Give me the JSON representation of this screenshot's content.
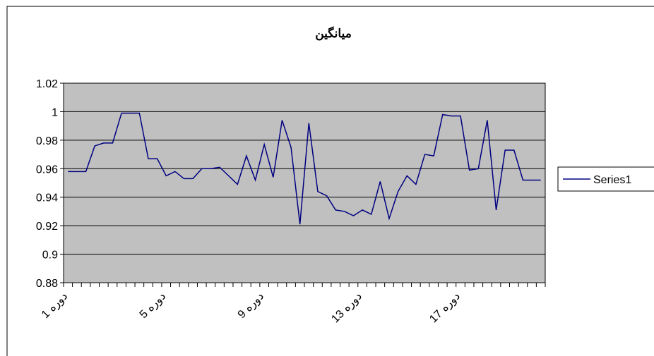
{
  "chart_data": {
    "type": "line",
    "title": "میانگین",
    "categories": [
      "دوره 1",
      null,
      null,
      null,
      null,
      null,
      null,
      null,
      null,
      null,
      null,
      "دوره 5",
      null,
      null,
      null,
      null,
      null,
      null,
      null,
      null,
      null,
      null,
      "دوره 9",
      null,
      null,
      null,
      null,
      null,
      null,
      null,
      null,
      null,
      null,
      "دوره 13",
      null,
      null,
      null,
      null,
      null,
      null,
      null,
      null,
      null,
      null,
      "دوره 17",
      null,
      null,
      null,
      null,
      null,
      null,
      null,
      null,
      null
    ],
    "series": [
      {
        "name": "Series1",
        "color": "#000080",
        "values": [
          0.958,
          0.958,
          0.958,
          0.976,
          0.978,
          0.978,
          0.999,
          0.999,
          0.999,
          0.967,
          0.967,
          0.955,
          0.958,
          0.953,
          0.953,
          0.96,
          0.96,
          0.961,
          0.955,
          0.949,
          0.969,
          0.952,
          0.977,
          0.954,
          0.994,
          0.975,
          0.921,
          0.992,
          0.944,
          0.941,
          0.931,
          0.93,
          0.927,
          0.931,
          0.928,
          0.951,
          0.925,
          0.944,
          0.955,
          0.949,
          0.97,
          0.969,
          0.998,
          0.997,
          0.997,
          0.959,
          0.96,
          0.994,
          0.931,
          0.973,
          0.973,
          0.952,
          0.952,
          0.952
        ]
      }
    ],
    "ylim": [
      0.88,
      1.02
    ],
    "yticks": [
      0.88,
      0.9,
      0.92,
      0.94,
      0.96,
      0.98,
      {
        "value": 1,
        "label": "1"
      },
      1.02
    ],
    "grid": true,
    "legend": "right"
  }
}
